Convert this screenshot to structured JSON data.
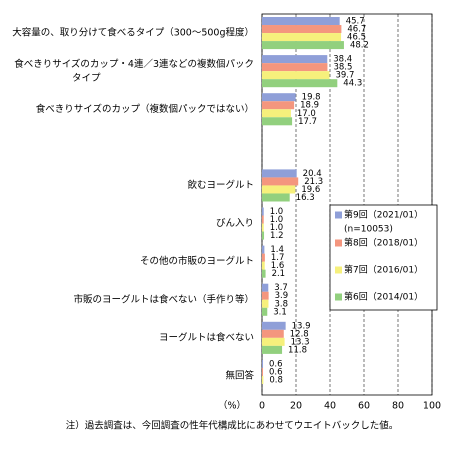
{
  "chart_data": {
    "type": "hbar",
    "categories": [
      "大容量の、取り分けて食べるタイプ（300～500g程度）",
      "食べきりサイズのカップ・4連／3連などの複数個パック\nタイプ",
      "食べきりサイズのカップ（複数個パックではない）",
      null,
      "飲むヨーグルト",
      "びん入り",
      "その他の市販のヨーグルト",
      "市販のヨーグルトは食べない（手作り等）",
      "ヨーグルトは食べない",
      "無回答"
    ],
    "series": [
      {
        "name": "第9回（2021/01）",
        "note": "(n=10053)",
        "color": "#8f9fd8",
        "values": [
          45.7,
          38.4,
          19.8,
          null,
          20.4,
          1.0,
          1.4,
          3.7,
          13.9,
          0.6
        ]
      },
      {
        "name": "第8回（2018/01）",
        "color": "#f4967e",
        "values": [
          46.7,
          38.5,
          18.9,
          null,
          21.3,
          1.0,
          1.7,
          3.9,
          12.8,
          0.6
        ]
      },
      {
        "name": "第7回（2016/01）",
        "color": "#f6f07c",
        "values": [
          46.5,
          39.7,
          17.0,
          null,
          19.6,
          1.0,
          1.6,
          3.8,
          13.3,
          0.8
        ]
      },
      {
        "name": "第6回（2014/01）",
        "color": "#92d07e",
        "values": [
          48.2,
          44.3,
          17.7,
          null,
          16.3,
          1.2,
          2.1,
          3.1,
          11.8,
          null
        ]
      }
    ],
    "value_labels_decimals": 1,
    "xlim": [
      0,
      100
    ],
    "xticks": [
      0,
      20,
      40,
      60,
      80,
      100
    ],
    "unit_label": "（%）",
    "footnote": "注）過去調査は、今回調査の性年代構成比にあわせてウエイトバックした値。",
    "grid": true,
    "legend": "right"
  }
}
